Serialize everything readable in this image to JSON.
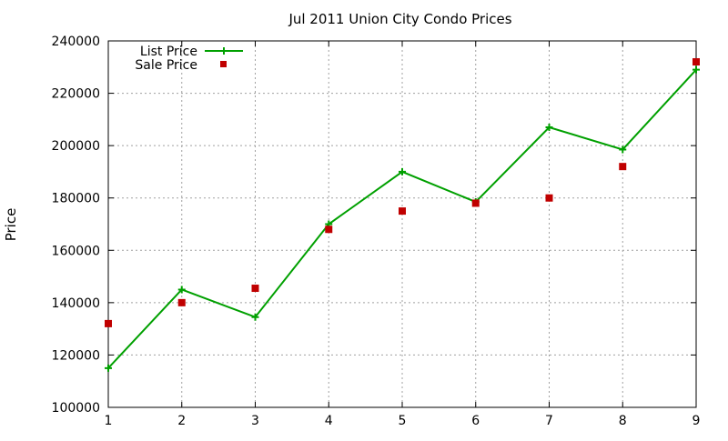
{
  "chart_data": {
    "type": "line",
    "title": "Jul 2011 Union City Condo Prices",
    "xlabel": "",
    "ylabel": "Price",
    "x": [
      1,
      2,
      3,
      4,
      5,
      6,
      7,
      8,
      9
    ],
    "xlim": [
      1,
      9
    ],
    "ylim": [
      100000,
      240000
    ],
    "xticks": [
      "1",
      "2",
      "3",
      "4",
      "5",
      "6",
      "7",
      "8",
      "9"
    ],
    "yticks": [
      "100000",
      "120000",
      "140000",
      "160000",
      "180000",
      "200000",
      "220000",
      "240000"
    ],
    "grid": true,
    "legend_position": "top-left",
    "series": [
      {
        "name": "List Price",
        "type": "line",
        "marker": "plus",
        "color": "#00a000",
        "values": [
          115000,
          145000,
          134500,
          170000,
          190000,
          178500,
          207000,
          198500,
          229000
        ]
      },
      {
        "name": "Sale Price",
        "type": "scatter",
        "marker": "square",
        "color": "#c00000",
        "values": [
          132000,
          140000,
          145500,
          168000,
          175000,
          178000,
          180000,
          192000,
          232000
        ]
      }
    ]
  }
}
